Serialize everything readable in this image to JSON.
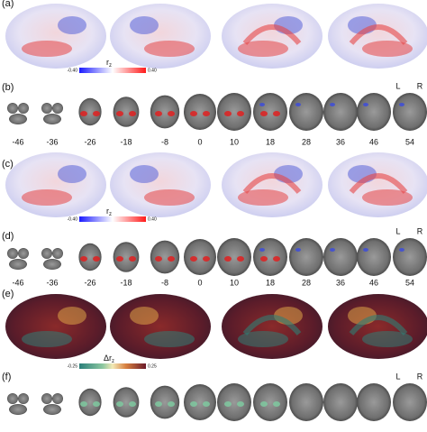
{
  "panels": [
    {
      "label": "(a)"
    },
    {
      "label": "(b)"
    },
    {
      "label": "(c)"
    },
    {
      "label": "(d)"
    },
    {
      "label": "(e)"
    },
    {
      "label": "(f)"
    }
  ],
  "colorbars": [
    {
      "min_label": "-0.40",
      "max_label": "0.40",
      "symbol": "r",
      "subscript": "z"
    },
    {
      "min_label": "-0.40",
      "max_label": "0.40",
      "symbol": "r",
      "subscript": "z"
    },
    {
      "min_label": "-0.25",
      "max_label": "0.25",
      "symbol": "Δr",
      "subscript": "z"
    }
  ],
  "slice_labels": [
    "-46",
    "-36",
    "-26",
    "-18",
    "-8",
    "0",
    "10",
    "18",
    "28",
    "36",
    "46",
    "54"
  ],
  "hemisphere_labels": [
    "L",
    "R"
  ]
}
